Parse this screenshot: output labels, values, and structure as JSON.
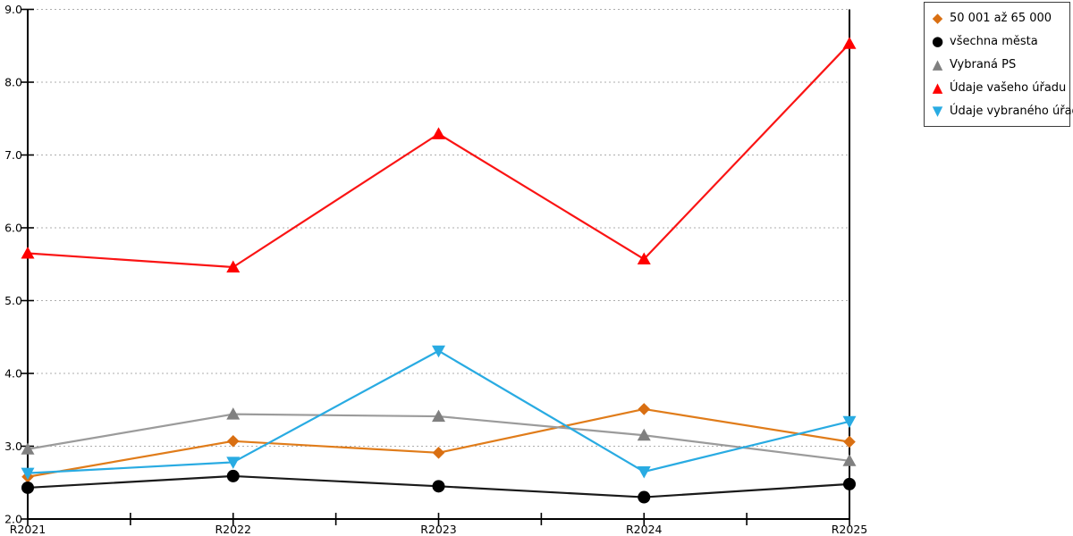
{
  "chart_data": {
    "type": "line",
    "title": "",
    "xlabel": "",
    "ylabel": "",
    "categories": [
      "R2021",
      "R2022",
      "R2023",
      "R2024",
      "R2025"
    ],
    "series": [
      {
        "name": "50 001 až 65 000",
        "marker": "diamond",
        "color": "#E07C1A",
        "marker_color": "#D96F12",
        "values": [
          2.58,
          3.07,
          2.91,
          3.51,
          3.06
        ]
      },
      {
        "name": "všechna města",
        "marker": "circle",
        "color": "#1A1A1A",
        "marker_color": "#000000",
        "values": [
          2.43,
          2.59,
          2.45,
          2.3,
          2.48
        ]
      },
      {
        "name": "Vybraná PS",
        "marker": "triangle-up",
        "color": "#9B9B9B",
        "marker_color": "#808080",
        "values": [
          2.96,
          3.44,
          3.41,
          3.15,
          2.8
        ]
      },
      {
        "name": "Údaje vašeho úřadu",
        "marker": "triangle-up",
        "color": "#FA1414",
        "marker_color": "#FF0000",
        "values": [
          5.65,
          5.46,
          7.29,
          5.57,
          8.53
        ]
      },
      {
        "name": "Údaje vybraného úřadu",
        "marker": "triangle-down",
        "color": "#29ABE2",
        "marker_color": "#29ABE2",
        "values": [
          2.63,
          2.78,
          4.31,
          2.65,
          3.34
        ]
      }
    ],
    "ylim": [
      2.0,
      9.0
    ],
    "y_tick_labels": [
      "2.0",
      "3.0",
      "4.0",
      "5.0",
      "6.0",
      "7.0",
      "8.0",
      "9.0"
    ],
    "grid": "horizontal dotted gridlines at each integer value",
    "legend_position": "outside top-right",
    "axis_color": "#000000",
    "gridline_color": "#ADADAD",
    "label_color": "#000000"
  }
}
